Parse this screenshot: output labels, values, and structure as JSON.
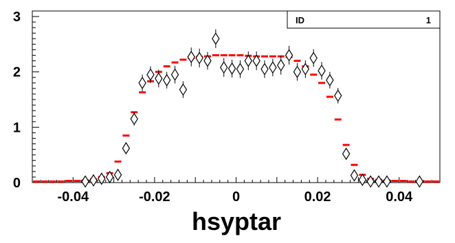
{
  "chart_data": {
    "type": "scatter",
    "xlabel": "hsyptar",
    "ylabel": "",
    "xlim": [
      -0.05,
      0.05
    ],
    "ylim": [
      0,
      3.1
    ],
    "x_ticks": [
      {
        "value": -0.04,
        "label": "-0.04"
      },
      {
        "value": -0.02,
        "label": "-0.02"
      },
      {
        "value": 0,
        "label": "0"
      },
      {
        "value": 0.02,
        "label": "0.02"
      },
      {
        "value": 0.04,
        "label": "0.04"
      }
    ],
    "y_ticks": [
      {
        "value": 0,
        "label": "0"
      },
      {
        "value": 1,
        "label": "1"
      },
      {
        "value": 2,
        "label": "2"
      },
      {
        "value": 3,
        "label": "3"
      }
    ],
    "stats_box": {
      "name": "ID",
      "value": "1"
    },
    "series": [
      {
        "style": "red-horizontal-bins",
        "color": "#ff0000",
        "x": [
          -0.049,
          -0.047,
          -0.045,
          -0.043,
          -0.041,
          -0.039,
          -0.037,
          -0.035,
          -0.033,
          -0.031,
          -0.029,
          -0.027,
          -0.025,
          -0.023,
          -0.021,
          -0.019,
          -0.017,
          -0.015,
          -0.013,
          -0.011,
          -0.009,
          -0.007,
          -0.005,
          -0.003,
          -0.001,
          0.001,
          0.003,
          0.005,
          0.007,
          0.009,
          0.011,
          0.013,
          0.015,
          0.017,
          0.019,
          0.021,
          0.023,
          0.025,
          0.027,
          0.029,
          0.031,
          0.033,
          0.035,
          0.037,
          0.039,
          0.041,
          0.043,
          0.045,
          0.047,
          0.049
        ],
        "y": [
          0.02,
          0.02,
          0.02,
          0.02,
          0.03,
          0.03,
          0.04,
          0.06,
          0.1,
          0.17,
          0.38,
          0.85,
          1.27,
          1.63,
          1.83,
          2.0,
          2.1,
          2.17,
          2.22,
          2.25,
          2.27,
          2.28,
          2.3,
          2.3,
          2.3,
          2.3,
          2.29,
          2.28,
          2.28,
          2.28,
          2.28,
          2.27,
          2.2,
          2.1,
          1.95,
          1.8,
          1.55,
          1.14,
          0.68,
          0.32,
          0.14,
          0.07,
          0.05,
          0.04,
          0.03,
          0.03,
          0.02,
          0.02,
          0.02,
          0.02
        ]
      },
      {
        "style": "open-diamond-with-errors",
        "color": "#000000",
        "x": [
          -0.037,
          -0.035,
          -0.033,
          -0.031,
          -0.029,
          -0.027,
          -0.025,
          -0.023,
          -0.021,
          -0.019,
          -0.017,
          -0.015,
          -0.013,
          -0.011,
          -0.009,
          -0.007,
          -0.005,
          -0.003,
          -0.001,
          0.001,
          0.003,
          0.005,
          0.007,
          0.009,
          0.011,
          0.013,
          0.015,
          0.017,
          0.019,
          0.021,
          0.023,
          0.025,
          0.027,
          0.029,
          0.031,
          0.033,
          0.035,
          0.037,
          0.045
        ],
        "y": [
          0.02,
          0.04,
          0.07,
          0.1,
          0.14,
          0.62,
          1.15,
          1.8,
          1.95,
          1.88,
          1.85,
          1.95,
          1.68,
          2.27,
          2.25,
          2.2,
          2.6,
          2.08,
          2.06,
          2.05,
          2.2,
          2.2,
          2.05,
          2.08,
          2.12,
          2.3,
          2.0,
          2.05,
          2.25,
          2.02,
          1.85,
          1.57,
          0.52,
          0.13,
          0.05,
          0.02,
          0.02,
          0.02,
          0.02
        ],
        "err": [
          0.02,
          0.03,
          0.04,
          0.05,
          0.06,
          0.09,
          0.12,
          0.15,
          0.15,
          0.16,
          0.15,
          0.16,
          0.15,
          0.17,
          0.17,
          0.16,
          0.17,
          0.17,
          0.16,
          0.16,
          0.17,
          0.17,
          0.16,
          0.16,
          0.17,
          0.17,
          0.16,
          0.16,
          0.16,
          0.16,
          0.15,
          0.14,
          0.08,
          0.05,
          0.03,
          0.02,
          0.02,
          0.02,
          0.02
        ]
      }
    ]
  }
}
